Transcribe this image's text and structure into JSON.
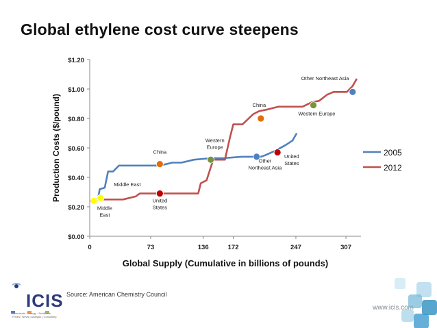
{
  "page": {
    "title": "Global ethylene cost curve steepens",
    "source": "Source: American Chemistry Council",
    "url": "www.icis.com",
    "logo_text": "ICIS",
    "logo_tagline": [
      "Chemicals · Energy · Fertilizers",
      "Prices | News | Analysis | Consulting"
    ]
  },
  "chart_data": {
    "type": "line",
    "title": "",
    "xlabel": "Global Supply (Cumulative in billions of pounds)",
    "ylabel": "Production Costs ($/pound)",
    "xlim": [
      0,
      325
    ],
    "ylim": [
      0,
      1.2
    ],
    "x_ticks": [
      0,
      73,
      136,
      172,
      247,
      307
    ],
    "y_ticks": [
      0,
      0.2,
      0.4,
      0.6,
      0.8,
      1.0,
      1.2
    ],
    "y_tick_labels": [
      "$0.00",
      "$0.20",
      "$0.40",
      "$0.60",
      "$0.80",
      "$1.00",
      "$1.20"
    ],
    "legend": "right",
    "series": [
      {
        "name": "2005",
        "color": "#4f81bd",
        "points": [
          [
            0,
            0.24
          ],
          [
            5,
            0.24
          ],
          [
            10,
            0.26
          ],
          [
            12,
            0.32
          ],
          [
            18,
            0.33
          ],
          [
            22,
            0.44
          ],
          [
            28,
            0.44
          ],
          [
            35,
            0.48
          ],
          [
            84,
            0.48
          ],
          [
            99,
            0.5
          ],
          [
            110,
            0.5
          ],
          [
            125,
            0.52
          ],
          [
            145,
            0.53
          ],
          [
            160,
            0.53
          ],
          [
            182,
            0.54
          ],
          [
            205,
            0.54
          ],
          [
            210,
            0.55
          ],
          [
            222,
            0.58
          ],
          [
            235,
            0.62
          ],
          [
            243,
            0.65
          ],
          [
            248,
            0.7
          ]
        ]
      },
      {
        "name": "2012",
        "color": "#c0504d",
        "points": [
          [
            0,
            0.24
          ],
          [
            5,
            0.24
          ],
          [
            10,
            0.25
          ],
          [
            40,
            0.25
          ],
          [
            55,
            0.27
          ],
          [
            60,
            0.29
          ],
          [
            130,
            0.29
          ],
          [
            133,
            0.36
          ],
          [
            140,
            0.38
          ],
          [
            148,
            0.52
          ],
          [
            162,
            0.52
          ],
          [
            168,
            0.67
          ],
          [
            172,
            0.76
          ],
          [
            183,
            0.76
          ],
          [
            196,
            0.83
          ],
          [
            203,
            0.85
          ],
          [
            212,
            0.86
          ],
          [
            226,
            0.88
          ],
          [
            255,
            0.88
          ],
          [
            266,
            0.91
          ],
          [
            275,
            0.92
          ],
          [
            284,
            0.96
          ],
          [
            292,
            0.98
          ],
          [
            300,
            0.98
          ],
          [
            308,
            0.98
          ],
          [
            315,
            1.02
          ],
          [
            320,
            1.07
          ]
        ]
      }
    ],
    "markers": [
      {
        "x": 5,
        "y": 0.24,
        "color": "#ffff00"
      },
      {
        "x": 13,
        "y": 0.26,
        "color": "#ffff00"
      },
      {
        "x": 84,
        "y": 0.49,
        "color": "#e46c0a"
      },
      {
        "x": 84,
        "y": 0.29,
        "color": "#c00000"
      },
      {
        "x": 145,
        "y": 0.52,
        "color": "#77933c"
      },
      {
        "x": 200,
        "y": 0.54,
        "color": "#4f81bd"
      },
      {
        "x": 205,
        "y": 0.8,
        "color": "#e46c0a"
      },
      {
        "x": 225,
        "y": 0.57,
        "color": "#c00000"
      },
      {
        "x": 268,
        "y": 0.89,
        "color": "#77933c"
      },
      {
        "x": 315,
        "y": 0.98,
        "color": "#4f81bd"
      }
    ],
    "annotations": [
      {
        "text": [
          "Middle",
          "East"
        ],
        "x": 18,
        "y": 0.18
      },
      {
        "text": [
          "Middle East"
        ],
        "x": 45,
        "y": 0.34
      },
      {
        "text": [
          "China"
        ],
        "x": 84,
        "y": 0.56
      },
      {
        "text": [
          "United",
          "States"
        ],
        "x": 84,
        "y": 0.23
      },
      {
        "text": [
          "Western",
          "Europe"
        ],
        "x": 150,
        "y": 0.64
      },
      {
        "text": [
          "Other",
          "Northeast Asia"
        ],
        "x": 210,
        "y": 0.5
      },
      {
        "text": [
          "China"
        ],
        "x": 203,
        "y": 0.88
      },
      {
        "text": [
          "United",
          "States"
        ],
        "x": 242,
        "y": 0.53
      },
      {
        "text": [
          "Western Europe"
        ],
        "x": 272,
        "y": 0.82
      },
      {
        "text": [
          "Other Northeast Asia"
        ],
        "x": 282,
        "y": 1.06
      }
    ]
  }
}
